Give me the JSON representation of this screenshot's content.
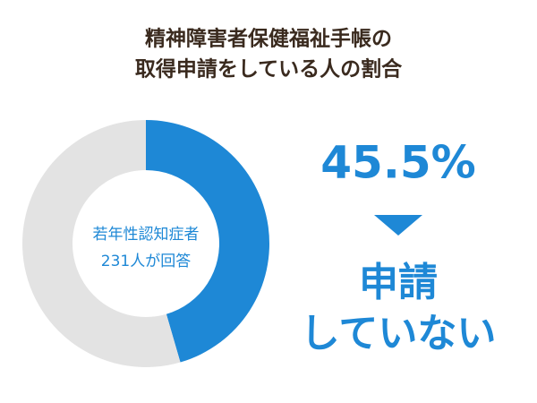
{
  "chart_data": {
    "type": "donut",
    "title_lines": [
      "精神障害者保健福祉手帳の",
      "取得申請をしている人の割合"
    ],
    "center_text": [
      "若年性認知症者",
      "231人が回答"
    ],
    "categories": [
      null,
      null
    ],
    "values": [
      45.5,
      54.5
    ],
    "value_labels": [
      "45.5%",
      null
    ],
    "colors": [
      "#1e88d6",
      "#e3e3e3"
    ],
    "annotation_lines": [
      "申請",
      "していない"
    ]
  }
}
